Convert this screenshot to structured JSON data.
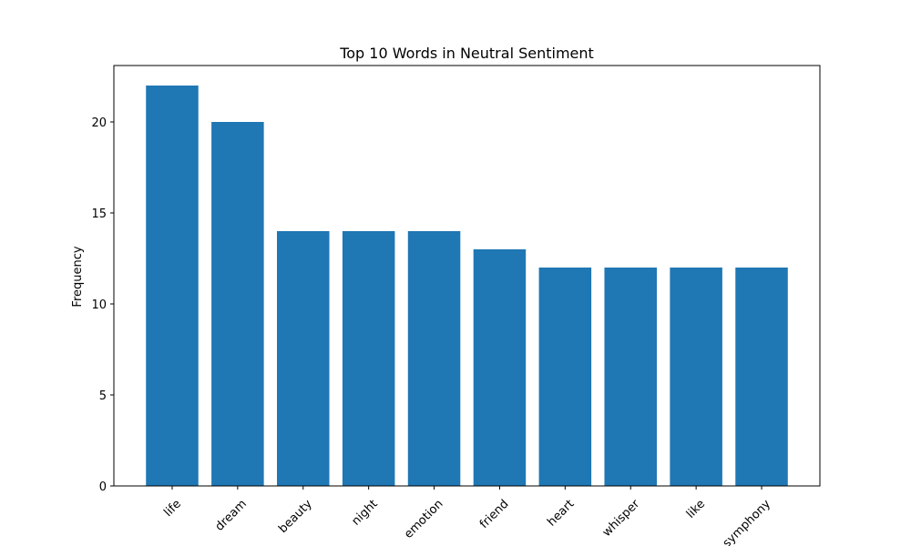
{
  "chart_data": {
    "type": "bar",
    "title": "Top 10 Words in Neutral Sentiment",
    "xlabel": "",
    "ylabel": "Frequency",
    "categories": [
      "life",
      "dream",
      "beauty",
      "night",
      "emotion",
      "friend",
      "heart",
      "whisper",
      "like",
      "symphony"
    ],
    "values": [
      22,
      20,
      14,
      14,
      14,
      13,
      12,
      12,
      12,
      12
    ],
    "ylim": [
      0,
      23.1
    ],
    "yticks": [
      0,
      5,
      10,
      15,
      20
    ],
    "bar_color": "#1f77b4",
    "x_tick_rotation": 45,
    "grid": false,
    "legend": "none"
  }
}
